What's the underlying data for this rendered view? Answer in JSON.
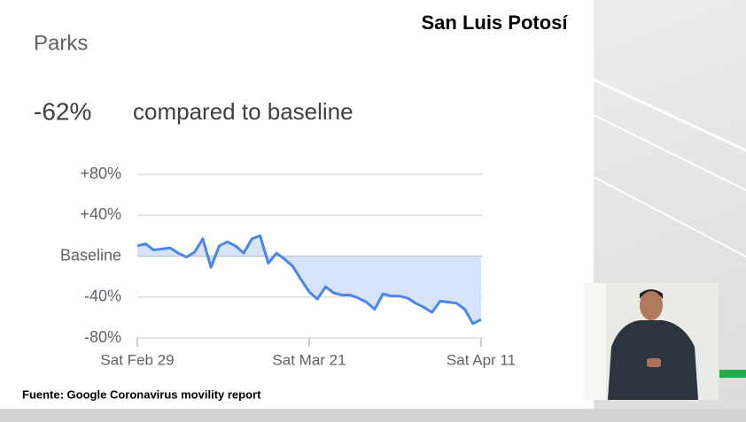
{
  "chart_data": {
    "type": "area-line",
    "banner": "San Luis Potosí",
    "title": "Parks",
    "headline": "-62%",
    "headline_text": "compared to baseline",
    "source": "Fuente: Google Coronavirus movility report",
    "categories": [
      "Sat Feb 29",
      null,
      null,
      null,
      null,
      null,
      null,
      null,
      null,
      null,
      null,
      null,
      null,
      null,
      null,
      null,
      null,
      null,
      null,
      null,
      null,
      "Sat Mar 21",
      null,
      null,
      null,
      null,
      null,
      null,
      null,
      null,
      null,
      null,
      null,
      null,
      null,
      null,
      null,
      null,
      null,
      null,
      null,
      null,
      "Sat Apr 11"
    ],
    "values": [
      10,
      12,
      6,
      7,
      8,
      3,
      -1,
      4,
      17,
      -11,
      10,
      14,
      10,
      3,
      17,
      20,
      -7,
      3,
      -3,
      -10,
      -23,
      -35,
      -42,
      -30,
      -36,
      -38,
      -38,
      -41,
      -45,
      -52,
      -37,
      -39,
      -39,
      -41,
      -46,
      -50,
      -55,
      -44,
      -45,
      -46,
      -52,
      -66,
      -62
    ],
    "color": "#4a86e8",
    "fill": "#d6e4fb",
    "ylim": [
      -80,
      80
    ],
    "yticks": [
      {
        "value": 80,
        "label": "+80%"
      },
      {
        "value": 40,
        "label": "+40%"
      },
      {
        "value": 0,
        "label": "Baseline"
      },
      {
        "value": -40,
        "label": "-40%"
      },
      {
        "value": -80,
        "label": "-80%"
      }
    ],
    "grid": true
  }
}
